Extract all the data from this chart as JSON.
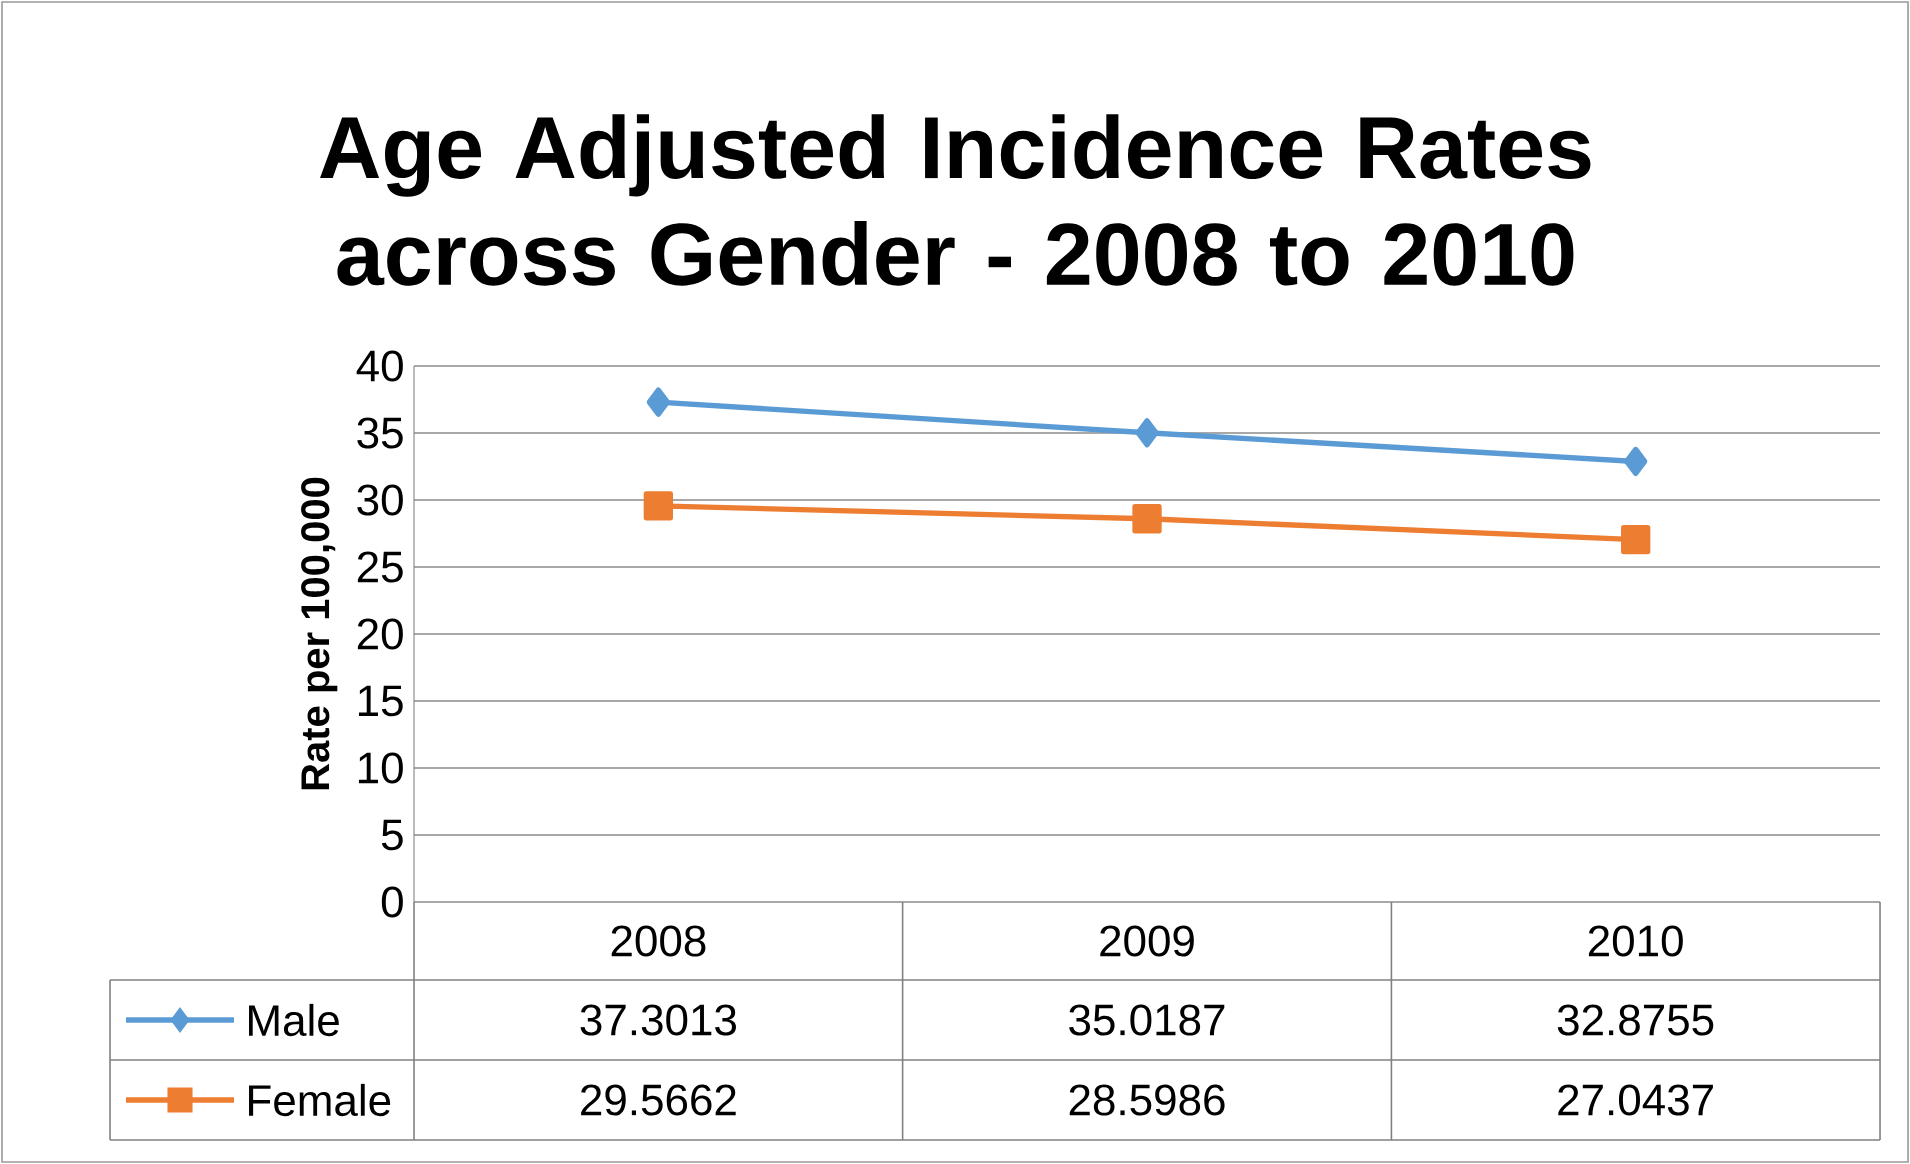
{
  "chart_data": {
    "type": "line",
    "title": "Age Adjusted Incidence Rates across Gender - 2008 to 2010",
    "ylabel": "Rate per 100,000",
    "categories": [
      "2008",
      "2009",
      "2010"
    ],
    "series": [
      {
        "name": "Male",
        "color": "#5b9bd5",
        "marker": "diamond",
        "values": [
          37.3013,
          35.0187,
          32.8755
        ]
      },
      {
        "name": "Female",
        "color": "#ed7d31",
        "marker": "square",
        "values": [
          29.5662,
          28.5986,
          27.0437
        ]
      }
    ],
    "ylim": [
      0,
      40
    ],
    "yticks": [
      0,
      5,
      10,
      15,
      20,
      25,
      30,
      35,
      40
    ],
    "grid": "y",
    "legend": "bottom",
    "data_labels": true,
    "line_style": "solid"
  }
}
